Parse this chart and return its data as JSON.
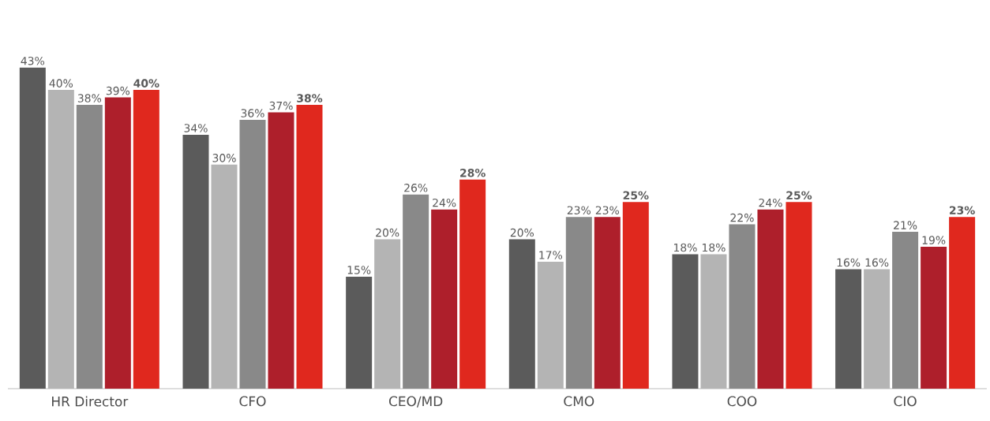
{
  "chart_data": {
    "type": "bar",
    "categories": [
      "HR Director",
      "CFO",
      "CEO/MD",
      "CMO",
      "COO",
      "CIO"
    ],
    "series": [
      {
        "color": "#5b5b5b",
        "values": [
          43,
          34,
          15,
          20,
          18,
          16
        ],
        "value_labels": [
          "43%",
          "34%",
          "15%",
          "20%",
          "18%",
          "16%"
        ]
      },
      {
        "color": "#b4b4b4",
        "values": [
          40,
          30,
          20,
          17,
          18,
          16
        ],
        "value_labels": [
          "40%",
          "30%",
          "20%",
          "17%",
          "18%",
          "16%"
        ]
      },
      {
        "color": "#898989",
        "values": [
          38,
          36,
          26,
          23,
          22,
          21
        ],
        "value_labels": [
          "38%",
          "36%",
          "26%",
          "23%",
          "22%",
          "21%"
        ]
      },
      {
        "color": "#ae1f2b",
        "values": [
          39,
          37,
          24,
          23,
          24,
          19
        ],
        "value_labels": [
          "39%",
          "37%",
          "24%",
          "23%",
          "24%",
          "19%"
        ]
      },
      {
        "color": "#e0281e",
        "values": [
          40,
          38,
          28,
          25,
          25,
          23
        ],
        "value_labels": [
          "**40%**",
          "**38%**",
          "**28%**",
          "**25%**",
          "**25%**",
          "**23%**"
        ]
      }
    ]
  }
}
